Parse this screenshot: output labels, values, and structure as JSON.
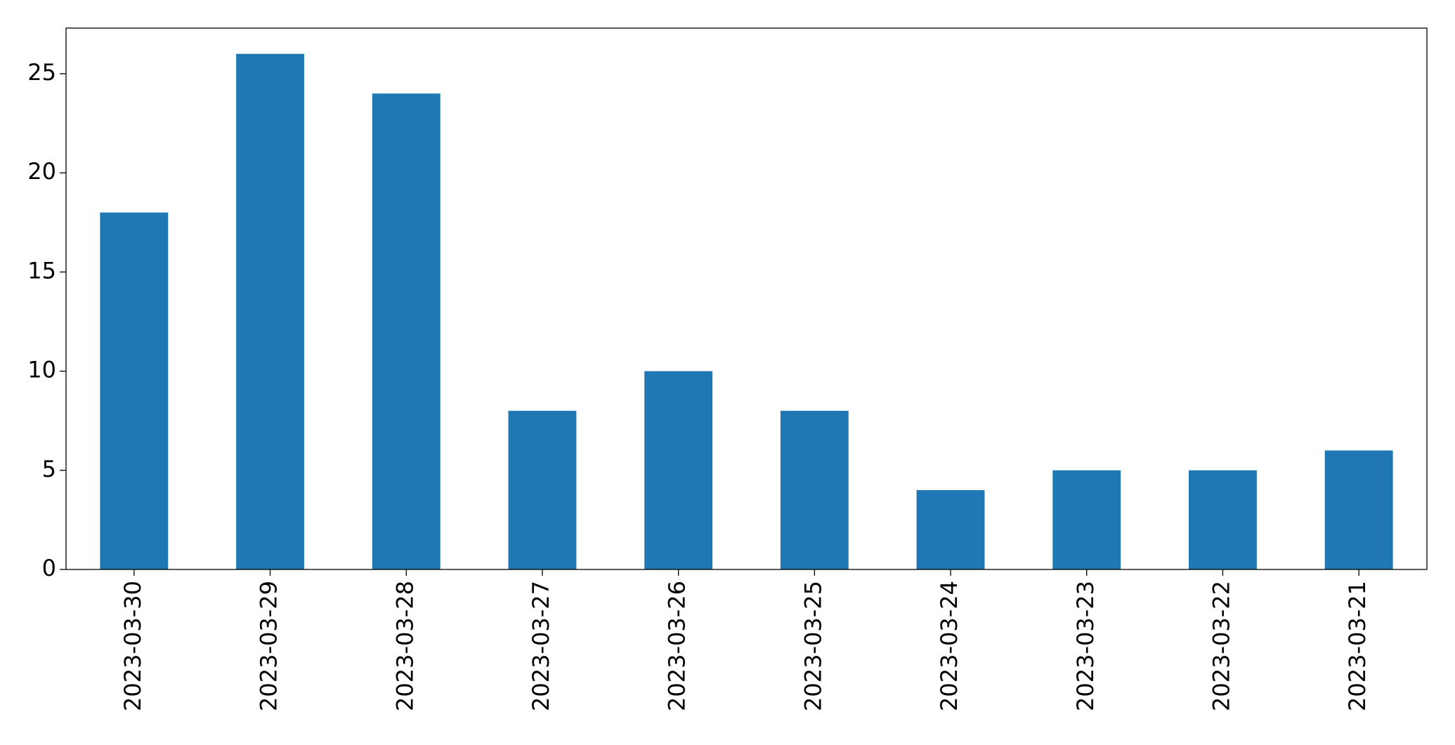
{
  "chart_data": {
    "type": "bar",
    "categories": [
      "2023-03-30",
      "2023-03-29",
      "2023-03-28",
      "2023-03-27",
      "2023-03-26",
      "2023-03-25",
      "2023-03-24",
      "2023-03-23",
      "2023-03-22",
      "2023-03-21"
    ],
    "values": [
      18,
      26,
      24,
      8,
      10,
      8,
      4,
      5,
      5,
      6
    ],
    "color": "#1f77b4",
    "ylim": [
      0,
      27.3
    ],
    "yticks": [
      0,
      5,
      10,
      15,
      20,
      25
    ],
    "grid": false
  }
}
